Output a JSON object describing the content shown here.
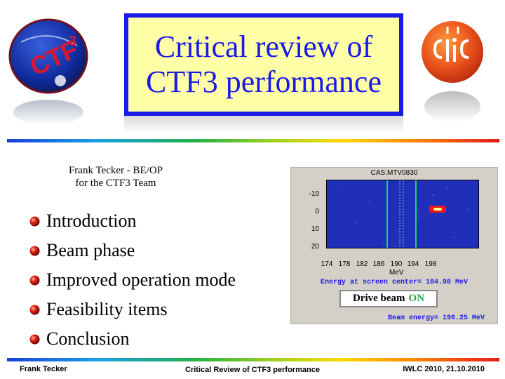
{
  "slide": {
    "title": [
      "Critical review of",
      "CTF3 performance"
    ],
    "author": [
      "Frank Tecker - BE/OP",
      "for the CTF3 Team"
    ],
    "bullets": [
      "Introduction",
      "Beam phase",
      "Improved operation mode",
      "Feasibility items",
      "Conclusion"
    ],
    "logos": {
      "left": "ctf3-logo",
      "right": "clic-logo"
    }
  },
  "screen": {
    "title": "CAS.MTV0830",
    "y_ticks": [
      "-10",
      "0",
      "10",
      "20"
    ],
    "x_ticks": [
      "174",
      "178",
      "182",
      "186",
      "190",
      "194",
      "198"
    ],
    "x_unit": "MeV",
    "energy_center": "Energy at screen center= 184.98 MeV",
    "beam_energy": "Beam energy= 196.25 MeV",
    "drive_beam_label": "Drive beam",
    "drive_beam_state": "ON"
  },
  "footer": {
    "left": "Frank Tecker",
    "center": "Critical Review of CTF3 performance",
    "right": "IWLC 2010, 21.10.2010"
  },
  "colors": {
    "title_blue": "#1a1ae6",
    "title_bg": "#ffffa8",
    "on_green": "#22a838",
    "plot_bg": "#1f2fb8"
  }
}
